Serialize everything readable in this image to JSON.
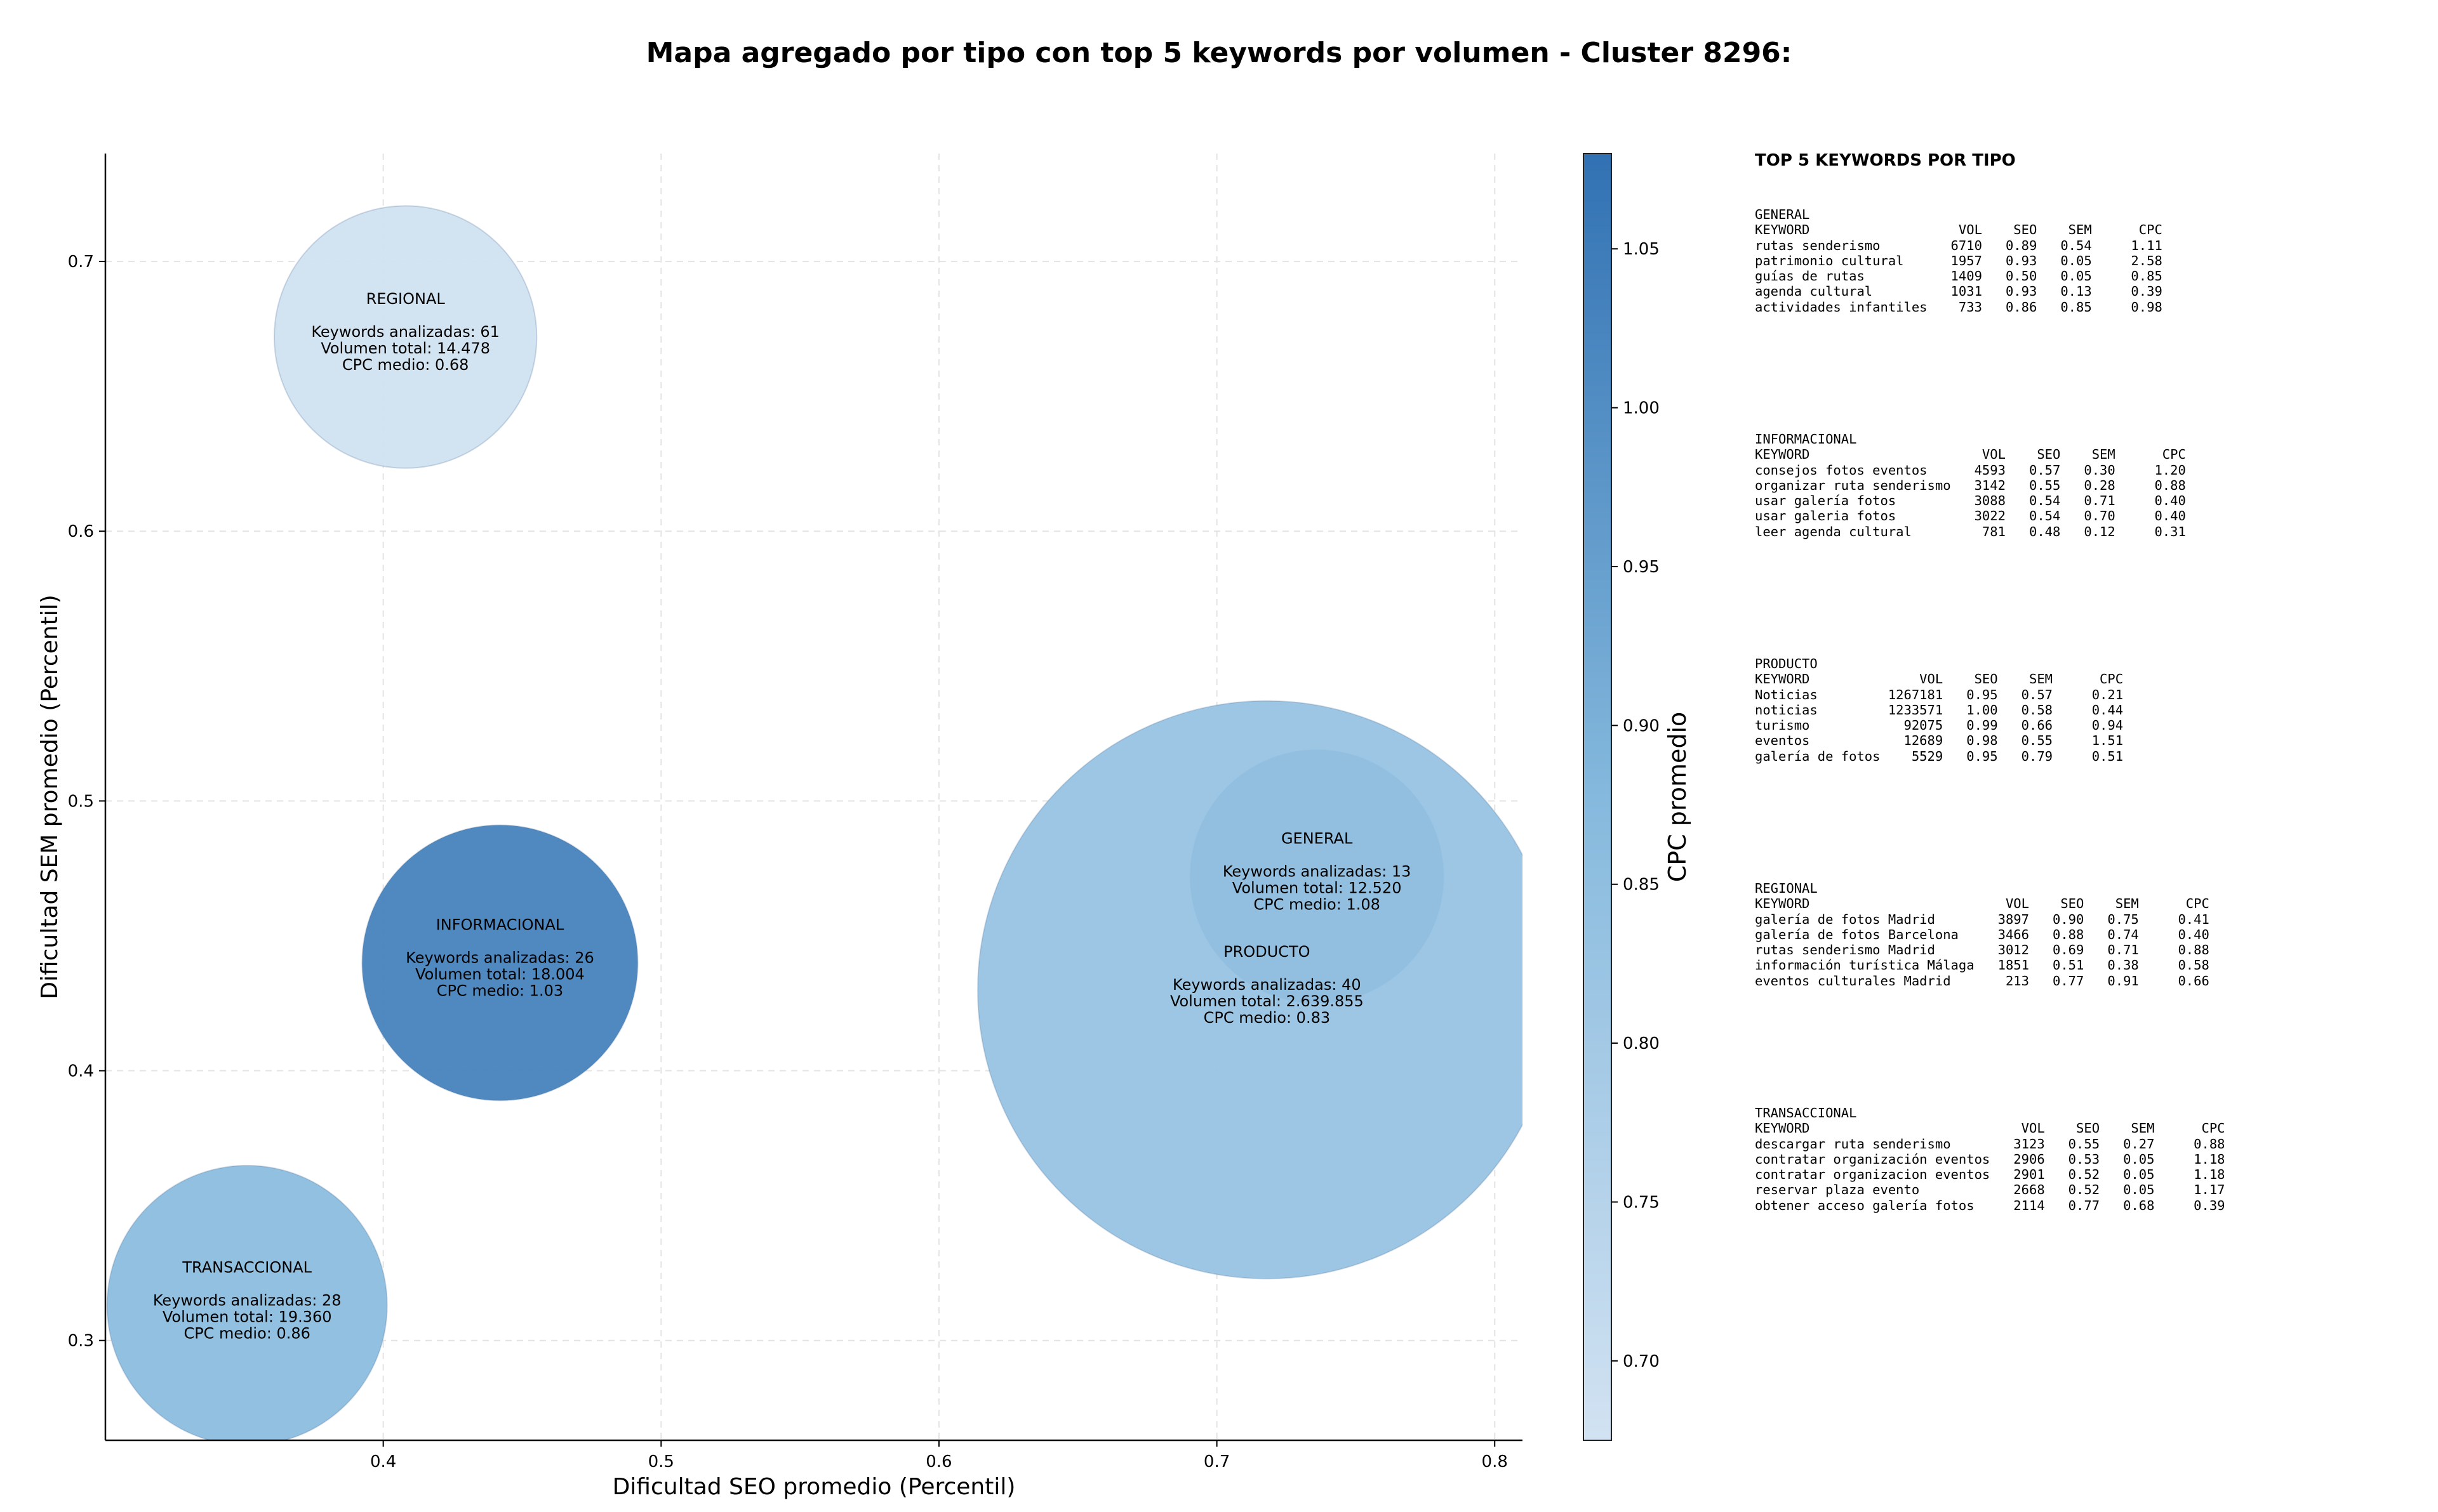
{
  "chart_data": {
    "type": "scatter",
    "title": "Mapa agregado por tipo con top 5 keywords por volumen - Cluster 8296:",
    "xlabel": "Dificultad SEO promedio (Percentil)",
    "ylabel": "Dificultad SEM promedio (Percentil)",
    "xlim": [
      0.3,
      0.81
    ],
    "ylim": [
      0.263,
      0.74
    ],
    "xticks": [
      0.4,
      0.5,
      0.6,
      0.7,
      0.8
    ],
    "yticks": [
      0.3,
      0.4,
      0.5,
      0.6,
      0.7
    ],
    "grid": true,
    "colorbar": {
      "label": "CPC promedio",
      "range": [
        0.675,
        1.08
      ],
      "ticks": [
        0.7,
        0.75,
        0.8,
        0.85,
        0.9,
        0.95,
        1.0,
        1.05
      ],
      "colormap": [
        "#d2e2f2",
        "#3171b3"
      ]
    },
    "points": [
      {
        "type": "REGIONAL",
        "x": 0.408,
        "y": 0.672,
        "keywords": 61,
        "volume": 14478,
        "cpc": 0.68,
        "label": "REGIONAL",
        "line1": "Keywords analizadas: 61",
        "line2": "Volumen total: 14.478",
        "line3": "CPC medio: 0.68"
      },
      {
        "type": "INFORMACIONAL",
        "x": 0.442,
        "y": 0.44,
        "keywords": 26,
        "volume": 18004,
        "cpc": 1.03,
        "label": "INFORMACIONAL",
        "line1": "Keywords analizadas: 26",
        "line2": "Volumen total: 18.004",
        "line3": "CPC medio: 1.03"
      },
      {
        "type": "TRANSACCIONAL",
        "x": 0.351,
        "y": 0.313,
        "keywords": 28,
        "volume": 19360,
        "cpc": 0.86,
        "label": "TRANSACCIONAL",
        "line1": "Keywords analizadas: 28",
        "line2": "Volumen total: 19.360",
        "line3": "CPC medio: 0.86"
      },
      {
        "type": "GENERAL",
        "x": 0.736,
        "y": 0.472,
        "keywords": 13,
        "volume": 12520,
        "cpc": 1.08,
        "label": "GENERAL",
        "line1": "Keywords analizadas: 13",
        "line2": "Volumen total: 12.520",
        "line3": "CPC medio: 1.08"
      },
      {
        "type": "PRODUCTO",
        "x": 0.718,
        "y": 0.43,
        "keywords": 40,
        "volume": 2639855,
        "cpc": 0.83,
        "label": "PRODUCTO",
        "line1": "Keywords analizadas: 40",
        "line2": "Volumen total: 2.639.855",
        "line3": "CPC medio: 0.83"
      }
    ]
  },
  "keyword_panel": {
    "title": "TOP 5 KEYWORDS POR TIPO",
    "groups": [
      {
        "name": "GENERAL",
        "lines": [
          "GENERAL",
          "KEYWORD                   VOL    SEO    SEM      CPC",
          "rutas senderismo         6710   0.89   0.54     1.11",
          "patrimonio cultural      1957   0.93   0.05     2.58",
          "guías de rutas           1409   0.50   0.05     0.85",
          "agenda cultural          1031   0.93   0.13     0.39",
          "actividades infantiles    733   0.86   0.85     0.98"
        ]
      },
      {
        "name": "INFORMACIONAL",
        "lines": [
          "INFORMACIONAL",
          "KEYWORD                      VOL    SEO    SEM      CPC",
          "consejos fotos eventos      4593   0.57   0.30     1.20",
          "organizar ruta senderismo   3142   0.55   0.28     0.88",
          "usar galería fotos          3088   0.54   0.71     0.40",
          "usar galeria fotos          3022   0.54   0.70     0.40",
          "leer agenda cultural         781   0.48   0.12     0.31"
        ]
      },
      {
        "name": "PRODUCTO",
        "lines": [
          "PRODUCTO",
          "KEYWORD              VOL    SEO    SEM      CPC",
          "Noticias         1267181   0.95   0.57     0.21",
          "noticias         1233571   1.00   0.58     0.44",
          "turismo            92075   0.99   0.66     0.94",
          "eventos            12689   0.98   0.55     1.51",
          "galería de fotos    5529   0.95   0.79     0.51"
        ]
      },
      {
        "name": "REGIONAL",
        "lines": [
          "REGIONAL",
          "KEYWORD                         VOL    SEO    SEM      CPC",
          "galería de fotos Madrid        3897   0.90   0.75     0.41",
          "galería de fotos Barcelona     3466   0.88   0.74     0.40",
          "rutas senderismo Madrid        3012   0.69   0.71     0.88",
          "información turística Málaga   1851   0.51   0.38     0.58",
          "eventos culturales Madrid       213   0.77   0.91     0.66"
        ]
      },
      {
        "name": "TRANSACCIONAL",
        "lines": [
          "TRANSACCIONAL",
          "KEYWORD                           VOL    SEO    SEM      CPC",
          "descargar ruta senderismo        3123   0.55   0.27     0.88",
          "contratar organización eventos   2906   0.53   0.05     1.18",
          "contratar organizacion eventos   2901   0.52   0.05     1.18",
          "reservar plaza evento            2668   0.52   0.05     1.17",
          "obtener acceso galería fotos     2114   0.77   0.68     0.39"
        ]
      }
    ]
  }
}
